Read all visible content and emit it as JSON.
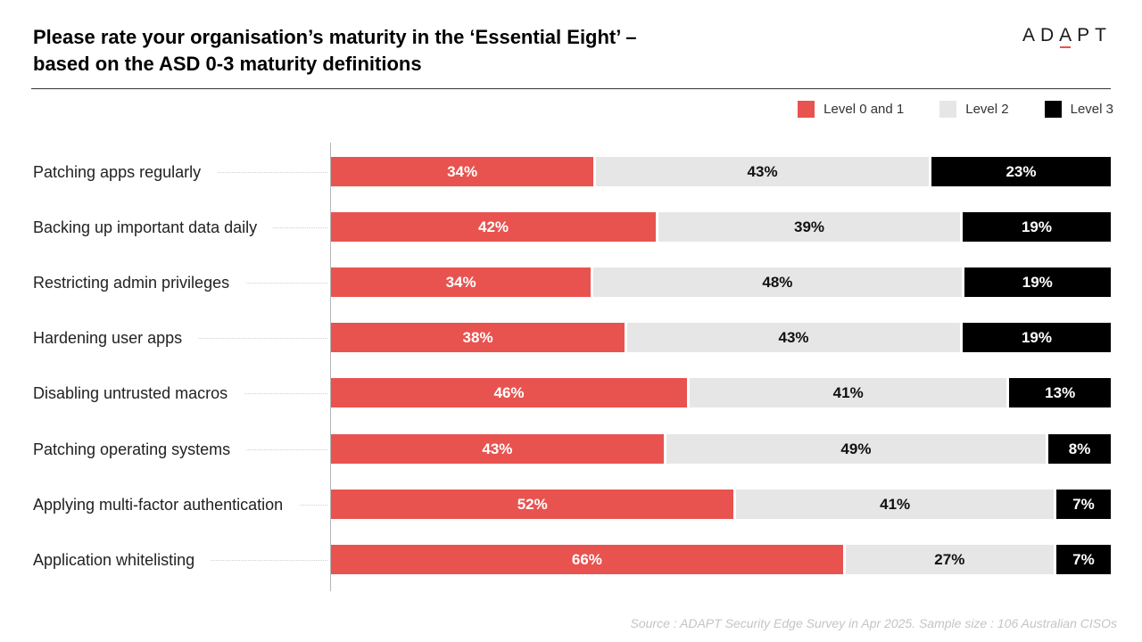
{
  "header": {
    "title_line1": "Please rate your organisation’s maturity in the ‘Essential Eight’ –",
    "title_line2": "based on the ASD 0-3 maturity definitions",
    "logo_pre": "AD",
    "logo_accent": "A",
    "logo_post": "PT"
  },
  "colors": {
    "level01": "#e8534f",
    "level2": "#e6e6e6",
    "level3": "#000000"
  },
  "chart_data": {
    "type": "bar",
    "orientation": "horizontal",
    "stacked": true,
    "percent_total": 100,
    "legend": "top-right",
    "categories": [
      "Patching apps regularly",
      "Backing up important data daily",
      "Restricting admin privileges",
      "Hardening user apps",
      "Disabling untrusted macros",
      "Patching operating systems",
      "Applying multi-factor authentication",
      "Application whitelisting"
    ],
    "series": [
      {
        "name": "Level 0 and 1",
        "values": [
          34,
          42,
          34,
          38,
          46,
          43,
          52,
          66
        ]
      },
      {
        "name": "Level 2",
        "values": [
          43,
          39,
          48,
          43,
          41,
          49,
          41,
          27
        ]
      },
      {
        "name": "Level 3",
        "values": [
          23,
          19,
          19,
          19,
          13,
          8,
          7,
          7
        ]
      }
    ]
  },
  "footer": {
    "source": "Source : ADAPT Security Edge Survey in Apr 2025. Sample size : 106 Australian CISOs"
  }
}
